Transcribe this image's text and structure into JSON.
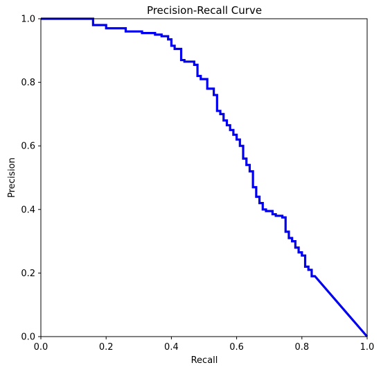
{
  "chart_data": {
    "type": "line",
    "title": "Precision-Recall Curve",
    "xlabel": "Recall",
    "ylabel": "Precision",
    "xlim": [
      0.0,
      1.0
    ],
    "ylim": [
      0.0,
      1.0
    ],
    "xticks": [
      "0.0",
      "0.2",
      "0.4",
      "0.6",
      "0.8",
      "1.0"
    ],
    "yticks": [
      "0.0",
      "0.2",
      "0.4",
      "0.6",
      "0.8",
      "1.0"
    ],
    "grid": false,
    "legend": null,
    "line_color": "#0000ee",
    "series": [
      {
        "x": [
          0.0,
          0.16,
          0.16,
          0.2,
          0.2,
          0.26,
          0.26,
          0.31,
          0.31,
          0.35,
          0.35,
          0.37,
          0.37,
          0.39,
          0.39,
          0.4,
          0.4,
          0.41,
          0.41,
          0.43,
          0.43,
          0.44,
          0.44,
          0.47,
          0.47,
          0.48,
          0.48,
          0.49,
          0.49,
          0.51,
          0.51,
          0.53,
          0.53,
          0.54,
          0.54,
          0.55,
          0.55,
          0.56,
          0.56,
          0.57,
          0.57,
          0.58,
          0.58,
          0.59,
          0.59,
          0.6,
          0.6,
          0.61,
          0.61,
          0.62,
          0.62,
          0.63,
          0.63,
          0.64,
          0.64,
          0.65,
          0.65,
          0.66,
          0.66,
          0.67,
          0.67,
          0.68,
          0.68,
          0.69,
          0.69,
          0.71,
          0.71,
          0.72,
          0.72,
          0.74,
          0.74,
          0.75,
          0.75,
          0.76,
          0.76,
          0.77,
          0.77,
          0.78,
          0.78,
          0.79,
          0.79,
          0.8,
          0.8,
          0.81,
          0.81,
          0.82,
          0.82,
          0.83,
          0.83,
          0.84,
          1.0
        ],
        "y": [
          1.0,
          1.0,
          0.98,
          0.98,
          0.97,
          0.97,
          0.96,
          0.96,
          0.955,
          0.955,
          0.95,
          0.95,
          0.945,
          0.945,
          0.935,
          0.935,
          0.915,
          0.915,
          0.905,
          0.905,
          0.87,
          0.87,
          0.865,
          0.865,
          0.855,
          0.855,
          0.82,
          0.82,
          0.81,
          0.81,
          0.78,
          0.78,
          0.76,
          0.76,
          0.71,
          0.71,
          0.7,
          0.7,
          0.68,
          0.68,
          0.665,
          0.665,
          0.65,
          0.65,
          0.635,
          0.635,
          0.62,
          0.62,
          0.6,
          0.6,
          0.56,
          0.56,
          0.54,
          0.54,
          0.52,
          0.52,
          0.47,
          0.47,
          0.44,
          0.44,
          0.42,
          0.42,
          0.4,
          0.4,
          0.395,
          0.395,
          0.385,
          0.385,
          0.38,
          0.38,
          0.375,
          0.375,
          0.33,
          0.33,
          0.31,
          0.31,
          0.3,
          0.3,
          0.28,
          0.28,
          0.265,
          0.265,
          0.255,
          0.255,
          0.22,
          0.22,
          0.21,
          0.21,
          0.19,
          0.19,
          0.0
        ]
      }
    ]
  }
}
